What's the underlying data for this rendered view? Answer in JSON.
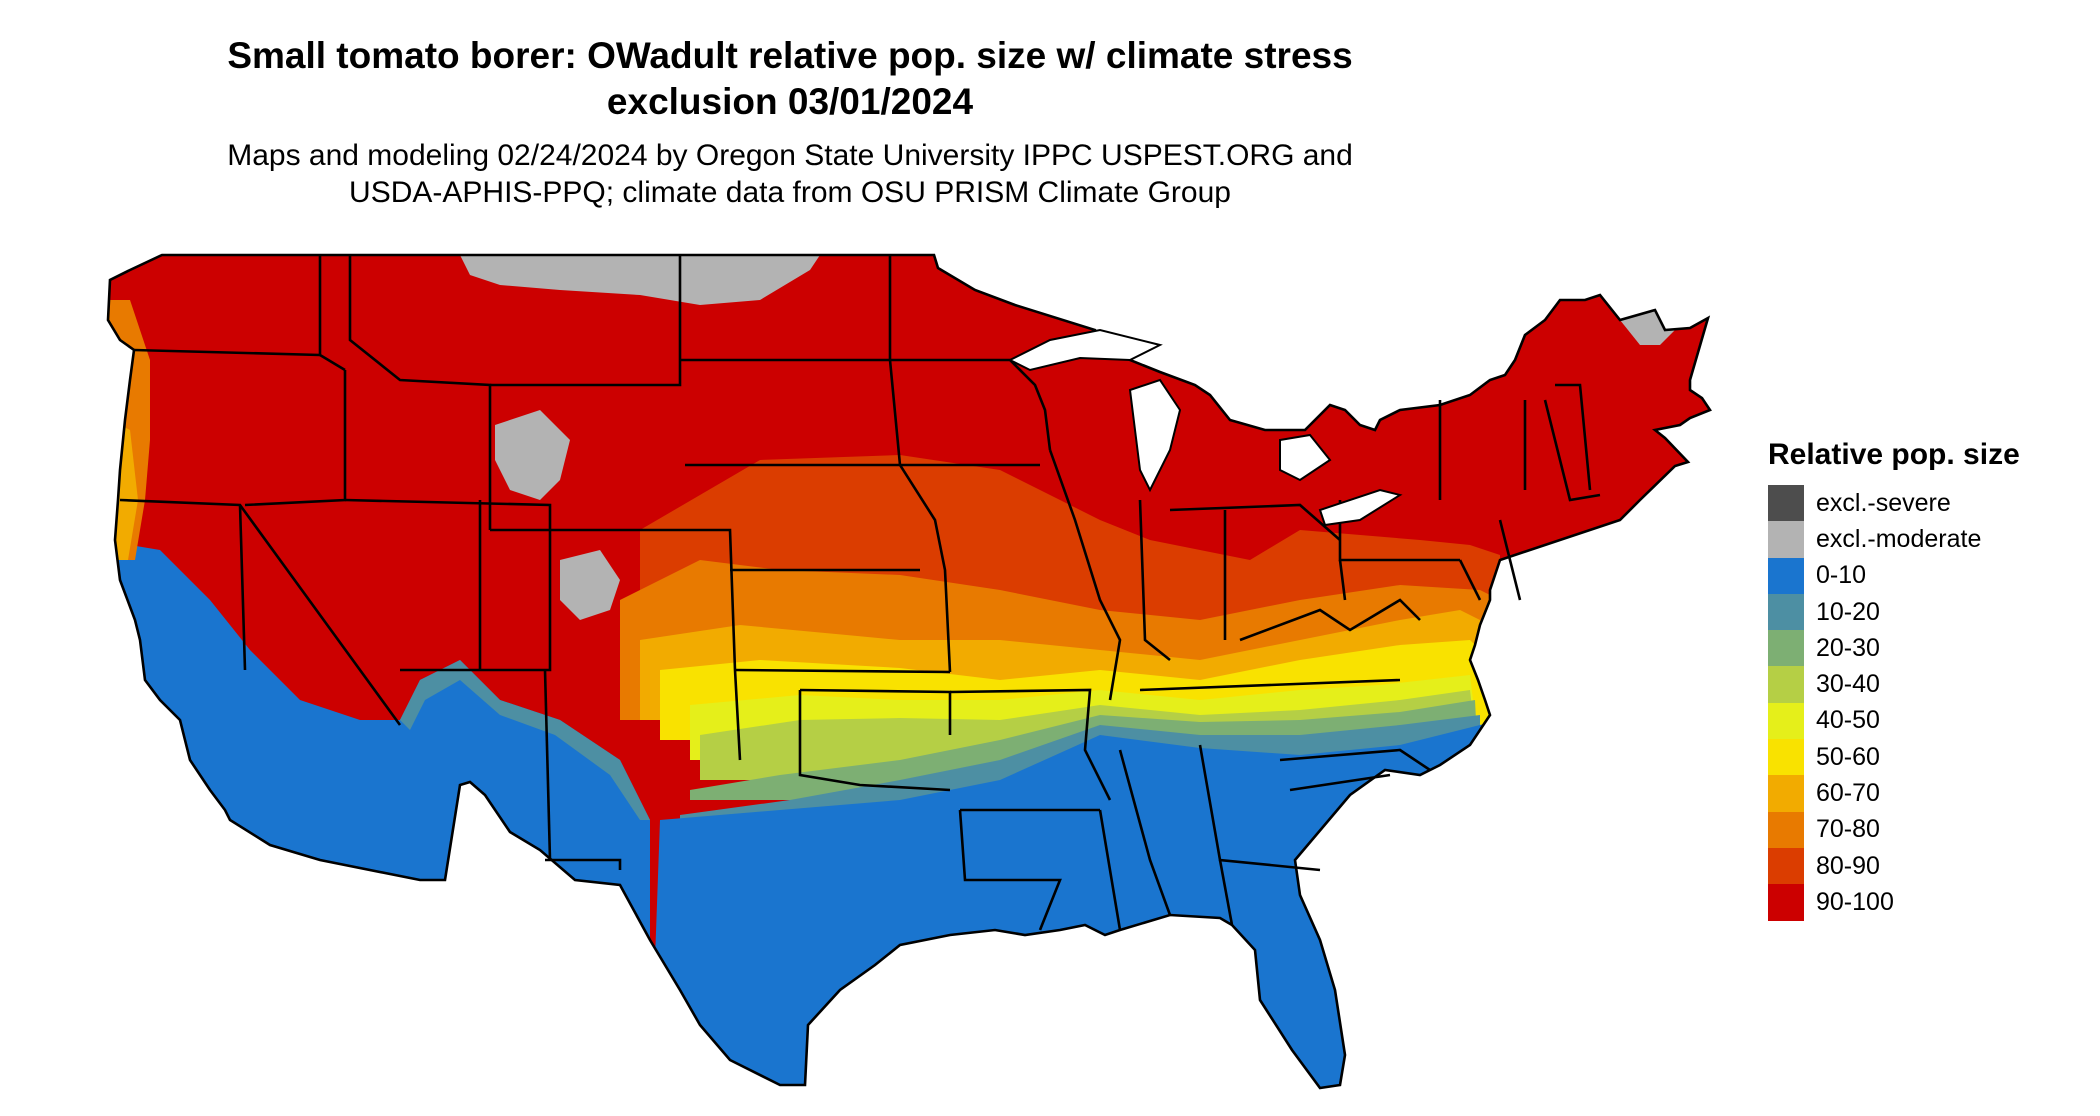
{
  "title_line1": "Small tomato borer: OWadult relative pop. size w/ climate stress",
  "title_line2": "exclusion 03/01/2024",
  "subtitle_line1": "Maps and modeling 02/24/2024 by Oregon State University IPPC USPEST.ORG and",
  "subtitle_line2": "USDA-APHIS-PPQ; climate data from OSU PRISM Climate Group",
  "legend": {
    "title": "Relative pop. size",
    "items": [
      {
        "label": "excl.-severe",
        "color": "#4d4d4d"
      },
      {
        "label": "excl.-moderate",
        "color": "#b3b3b3"
      },
      {
        "label": "0-10",
        "color": "#1a75cf"
      },
      {
        "label": "10-20",
        "color": "#4d8fa3"
      },
      {
        "label": "20-30",
        "color": "#7daf73"
      },
      {
        "label": "30-40",
        "color": "#b5cf45"
      },
      {
        "label": "40-50",
        "color": "#e5ef1a"
      },
      {
        "label": "50-60",
        "color": "#f9e200"
      },
      {
        "label": "60-70",
        "color": "#f2ab00"
      },
      {
        "label": "70-80",
        "color": "#e87a00"
      },
      {
        "label": "80-90",
        "color": "#db3d00"
      },
      {
        "label": "90-100",
        "color": "#cc0000"
      }
    ]
  }
}
